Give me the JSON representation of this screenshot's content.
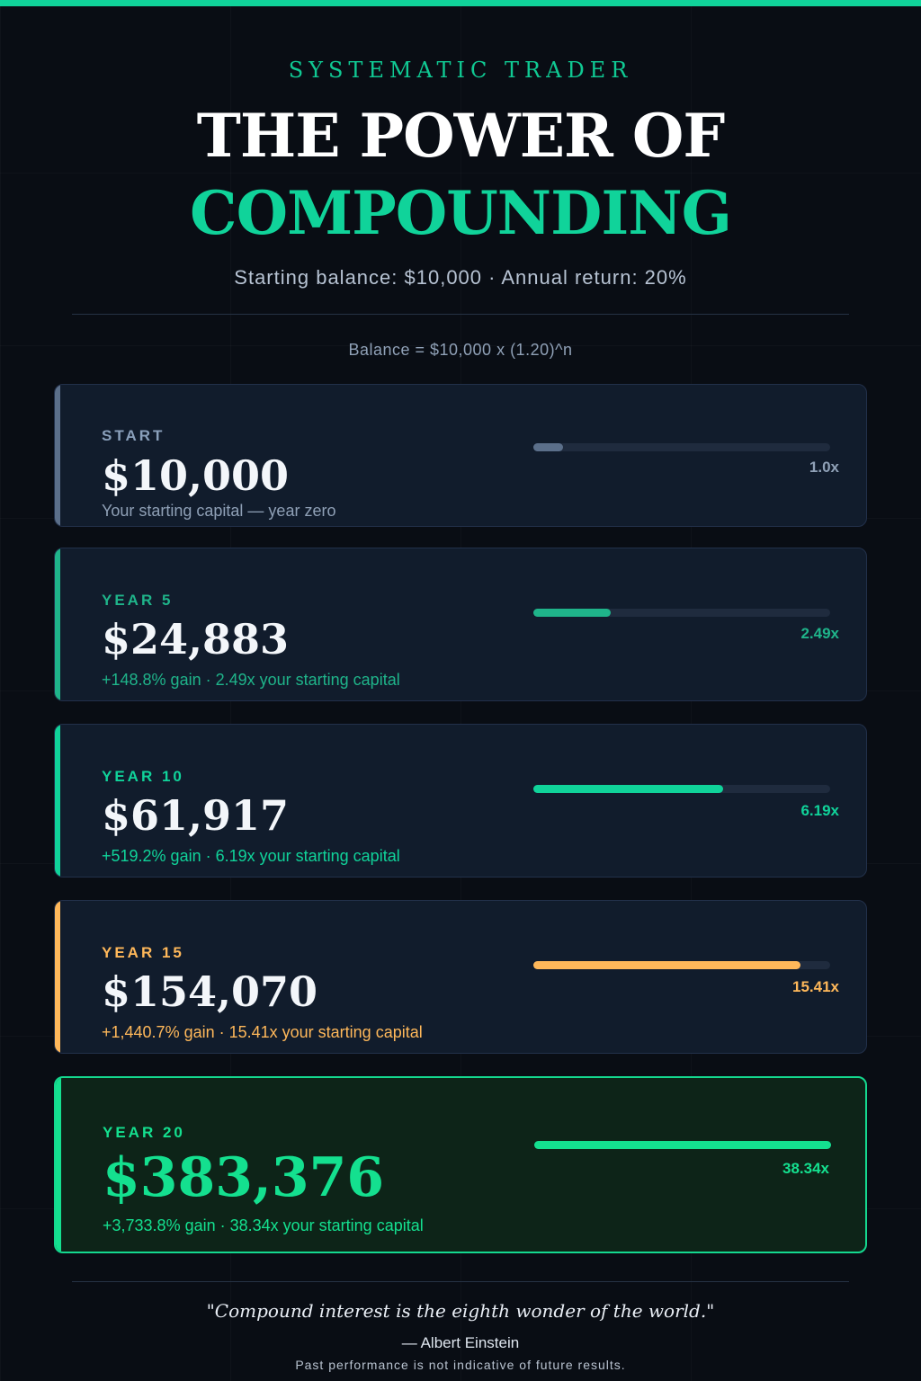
{
  "header": {
    "brand": "SYSTEMATIC TRADER",
    "title_line1": "THE POWER OF",
    "title_line2": "COMPOUNDING",
    "subtitle": "Starting balance: $10,000 · Annual return: 20%",
    "formula": "Balance = $10,000 x (1.20)^n"
  },
  "colors": {
    "accent": "#10d39a",
    "start": "#5b6f8a",
    "year5": "#1fb48a",
    "year10": "#10d39a",
    "year15": "#ffb85a",
    "year20": "#14e08f"
  },
  "milestones": [
    {
      "label": "START",
      "amount": "$10,000",
      "desc": "Your starting capital — year zero",
      "multiple": "1.0x",
      "fill_fraction": 0.1
    },
    {
      "label": "YEAR 5",
      "amount": "$24,883",
      "desc": "+148.8% gain · 2.49x your starting capital",
      "multiple": "2.49x",
      "fill_fraction": 0.26
    },
    {
      "label": "YEAR 10",
      "amount": "$61,917",
      "desc": "+519.2% gain · 6.19x your starting capital",
      "multiple": "6.19x",
      "fill_fraction": 0.64
    },
    {
      "label": "YEAR 15",
      "amount": "$154,070",
      "desc": "+1,440.7% gain · 15.41x your starting capital",
      "multiple": "15.41x",
      "fill_fraction": 0.9
    },
    {
      "label": "YEAR 20",
      "amount": "$383,376",
      "desc": "+3,733.8% gain · 38.34x your starting capital",
      "multiple": "38.34x",
      "fill_fraction": 1.0
    }
  ],
  "footer": {
    "quote": "\"Compound interest is the eighth wonder of the world.\"",
    "author": "— Albert Einstein",
    "disclaimer": "Past performance is not indicative of future results."
  }
}
